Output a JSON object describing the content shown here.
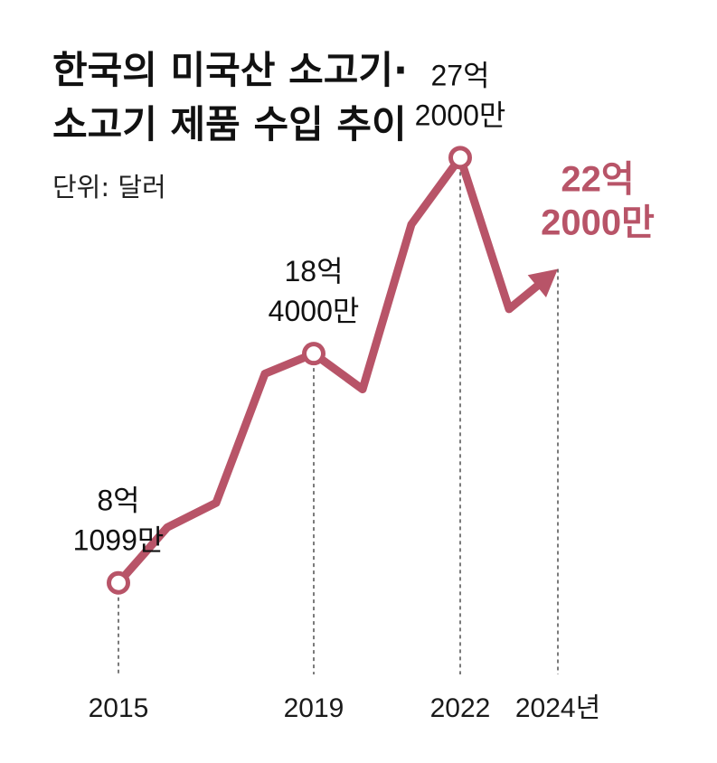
{
  "chart_data": {
    "type": "line",
    "title_lines": [
      "한국의 미국산 소고기·",
      "소고기 제품 수입 추이"
    ],
    "unit_label": "단위: 달러",
    "x": [
      2015,
      2016,
      2017,
      2018,
      2019,
      2020,
      2021,
      2022,
      2023,
      2024
    ],
    "values": [
      810990000,
      1060000000,
      1170000000,
      1750000000,
      1840000000,
      1680000000,
      2420000000,
      2720000000,
      2040000000,
      2220000000
    ],
    "xticks": [
      "2015",
      "2019",
      "2022",
      "2024년"
    ],
    "ylim": [
      400000000,
      2900000000
    ],
    "grid": false,
    "line_color": "#b85468",
    "annotations": [
      {
        "x": 2015,
        "lines": [
          "8억",
          "1099만"
        ],
        "highlight": false
      },
      {
        "x": 2019,
        "lines": [
          "18억",
          "4000만"
        ],
        "highlight": false
      },
      {
        "x": 2022,
        "lines": [
          "27억",
          "2000만"
        ],
        "highlight": false
      },
      {
        "x": 2024,
        "lines": [
          "22억",
          "2000만"
        ],
        "highlight": true
      }
    ],
    "marked_points": [
      2015,
      2019,
      2022
    ]
  }
}
